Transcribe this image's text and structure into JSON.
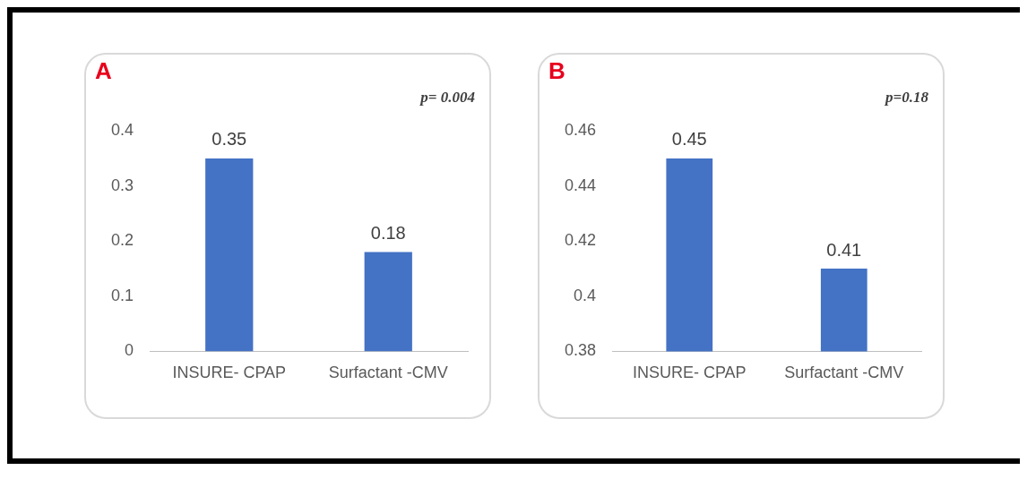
{
  "chart_data": [
    {
      "type": "bar",
      "title": "A",
      "categories": [
        "INSURE- CPAP",
        "Surfactant -CMV"
      ],
      "values": [
        0.35,
        0.18
      ],
      "color": "#4472c4",
      "ylim": [
        0,
        0.4
      ],
      "yticks": [
        0,
        0.1,
        0.2,
        0.3,
        0.4
      ],
      "data_labels": true,
      "grid": false,
      "legend": false,
      "annotations": [
        "p= 0.004"
      ]
    },
    {
      "type": "bar",
      "title": "B",
      "categories": [
        "INSURE- CPAP",
        "Surfactant -CMV"
      ],
      "values": [
        0.45,
        0.41
      ],
      "color": "#4472c4",
      "ylim": [
        0.38,
        0.46
      ],
      "yticks": [
        0.38,
        0.4,
        0.42,
        0.44,
        0.46
      ],
      "data_labels": true,
      "grid": false,
      "legend": false,
      "annotations": [
        "p=0.18"
      ]
    }
  ]
}
